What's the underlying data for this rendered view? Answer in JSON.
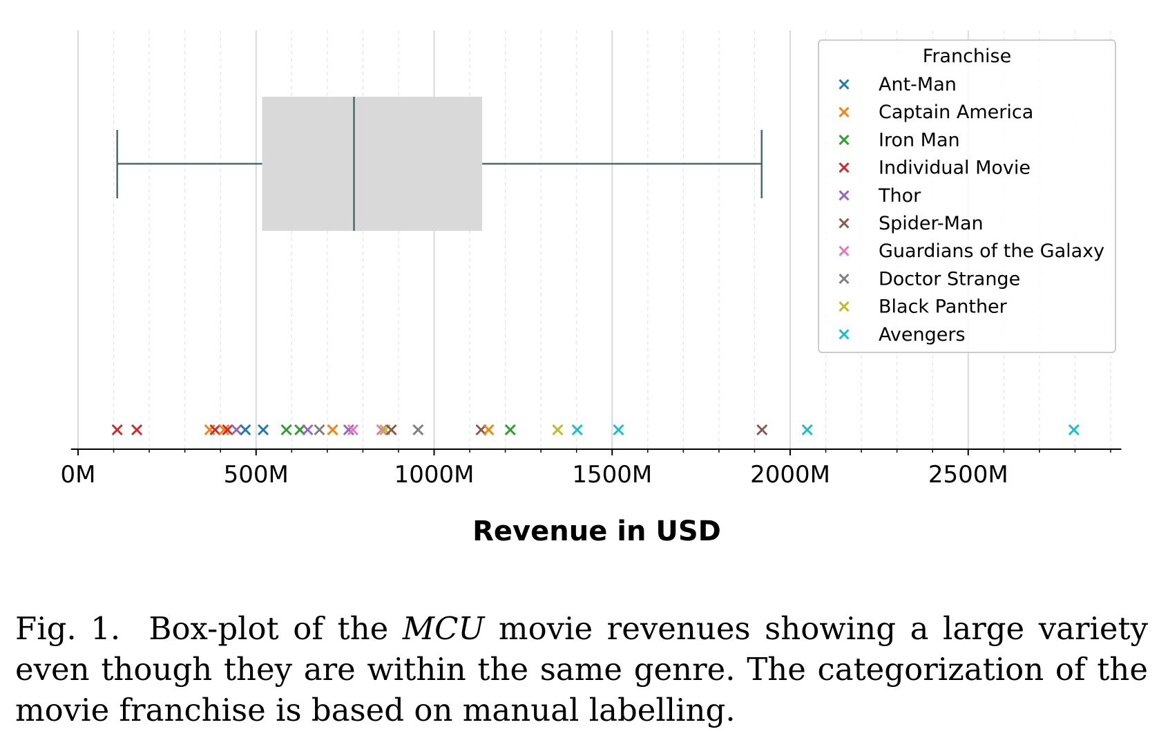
{
  "chart_data": {
    "type": "box",
    "xlabel": "Revenue in USD",
    "xlim": [
      -20,
      2930
    ],
    "x_ticks_major": [
      0,
      500,
      1000,
      1500,
      2000,
      2500
    ],
    "x_tick_labels": [
      "0M",
      "500M",
      "1000M",
      "1500M",
      "2000M",
      "2500M"
    ],
    "x_minor_step": 100,
    "grid": true,
    "box": {
      "whisker_low": 110,
      "q1": 517,
      "median": 775,
      "q3": 1135,
      "whisker_high": 1920
    },
    "legend": {
      "title": "Franchise",
      "placement": "top-right",
      "entries": [
        {
          "name": "Ant-Man",
          "color": "#1f77b4"
        },
        {
          "name": "Captain America",
          "color": "#ff7f0e"
        },
        {
          "name": "Iron Man",
          "color": "#2ca02c"
        },
        {
          "name": "Individual Movie",
          "color": "#d62728"
        },
        {
          "name": "Thor",
          "color": "#9467bd"
        },
        {
          "name": "Spider-Man",
          "color": "#8c564b"
        },
        {
          "name": "Guardians of the Galaxy",
          "color": "#e377c2"
        },
        {
          "name": "Doctor Strange",
          "color": "#7f7f7f"
        },
        {
          "name": "Black Panther",
          "color": "#bcbd22"
        },
        {
          "name": "Avengers",
          "color": "#17becf"
        }
      ]
    },
    "points": [
      {
        "franchise": "Individual Movie",
        "x": 110
      },
      {
        "franchise": "Individual Movie",
        "x": 165
      },
      {
        "franchise": "Captain America",
        "x": 370
      },
      {
        "franchise": "Individual Movie",
        "x": 385
      },
      {
        "franchise": "Captain America",
        "x": 410
      },
      {
        "franchise": "Individual Movie",
        "x": 420
      },
      {
        "franchise": "Thor",
        "x": 445
      },
      {
        "franchise": "Ant-Man",
        "x": 470
      },
      {
        "franchise": "Ant-Man",
        "x": 520
      },
      {
        "franchise": "Iron Man",
        "x": 585
      },
      {
        "franchise": "Iron Man",
        "x": 623
      },
      {
        "franchise": "Thor",
        "x": 645
      },
      {
        "franchise": "Doctor Strange",
        "x": 678
      },
      {
        "franchise": "Captain America",
        "x": 715
      },
      {
        "franchise": "Thor",
        "x": 760
      },
      {
        "franchise": "Guardians of the Galaxy",
        "x": 772
      },
      {
        "franchise": "Guardians of the Galaxy",
        "x": 853
      },
      {
        "franchise": "Black Panther",
        "x": 862
      },
      {
        "franchise": "Spider-Man",
        "x": 880
      },
      {
        "franchise": "Doctor Strange",
        "x": 955
      },
      {
        "franchise": "Spider-Man",
        "x": 1132
      },
      {
        "franchise": "Captain America",
        "x": 1153
      },
      {
        "franchise": "Iron Man",
        "x": 1214
      },
      {
        "franchise": "Black Panther",
        "x": 1347
      },
      {
        "franchise": "Avengers",
        "x": 1402
      },
      {
        "franchise": "Avengers",
        "x": 1518
      },
      {
        "franchise": "Spider-Man",
        "x": 1921
      },
      {
        "franchise": "Avengers",
        "x": 2048
      },
      {
        "franchise": "Avengers",
        "x": 2797
      }
    ]
  },
  "caption": {
    "fig_label": "Fig. 1.",
    "text_before": "Box-plot of the ",
    "emphasis": "MCU",
    "text_after": " movie revenues showing a large variety even though they are within the same genre. The categorization of the movie franchise is based on manual labelling."
  }
}
